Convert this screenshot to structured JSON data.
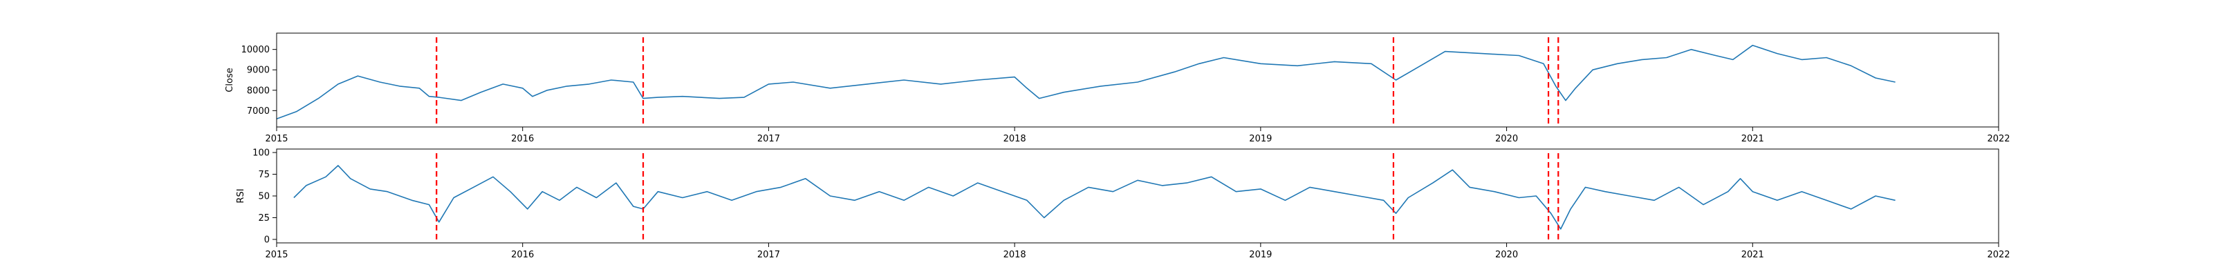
{
  "chart_data": [
    {
      "type": "line",
      "id": "close",
      "title": "",
      "xlabel": "",
      "ylabel": "Close",
      "xlim": [
        2015,
        2022
      ],
      "ylim": [
        6200,
        10800
      ],
      "xticks": [
        2015,
        2016,
        2017,
        2018,
        2019,
        2020,
        2021,
        2022
      ],
      "xtick_labels": [
        "2015",
        "2016",
        "2017",
        "2018",
        "2019",
        "2020",
        "2021",
        "2022"
      ],
      "yticks": [
        7000,
        8000,
        9000,
        10000
      ],
      "ytick_labels": [
        "7000",
        "8000",
        "9000",
        "10000"
      ],
      "grid": false,
      "series": [
        {
          "color": "#1f77b4",
          "x": [
            2015.0,
            2015.08,
            2015.17,
            2015.25,
            2015.33,
            2015.42,
            2015.5,
            2015.58,
            2015.62,
            2015.66,
            2015.75,
            2015.83,
            2015.92,
            2016.0,
            2016.04,
            2016.1,
            2016.18,
            2016.27,
            2016.36,
            2016.45,
            2016.49,
            2016.55,
            2016.65,
            2016.8,
            2016.9,
            2017.0,
            2017.1,
            2017.25,
            2017.4,
            2017.55,
            2017.7,
            2017.85,
            2018.0,
            2018.05,
            2018.1,
            2018.2,
            2018.35,
            2018.5,
            2018.65,
            2018.75,
            2018.85,
            2019.0,
            2019.15,
            2019.3,
            2019.45,
            2019.55,
            2019.65,
            2019.75,
            2019.9,
            2020.05,
            2020.15,
            2020.2,
            2020.24,
            2020.28,
            2020.35,
            2020.45,
            2020.55,
            2020.65,
            2020.75,
            2020.85,
            2020.92,
            2021.0,
            2021.1,
            2021.2,
            2021.3,
            2021.4,
            2021.5,
            2021.58
          ],
          "y": [
            6600,
            6950,
            7600,
            8300,
            8700,
            8400,
            8200,
            8100,
            7700,
            7650,
            7500,
            7900,
            8300,
            8100,
            7700,
            8000,
            8200,
            8300,
            8500,
            8400,
            7600,
            7650,
            7700,
            7600,
            7650,
            8300,
            8400,
            8100,
            8300,
            8500,
            8300,
            8500,
            8650,
            8100,
            7600,
            7900,
            8200,
            8400,
            8900,
            9300,
            9600,
            9300,
            9200,
            9400,
            9300,
            8500,
            9200,
            9900,
            9800,
            9700,
            9300,
            8200,
            7500,
            8100,
            9000,
            9300,
            9500,
            9600,
            10000,
            9700,
            9500,
            10200,
            9800,
            9500,
            9600,
            9200,
            8600,
            8400
          ]
        }
      ]
    },
    {
      "type": "line",
      "id": "rsi",
      "title": "",
      "xlabel": "",
      "ylabel": "RSI",
      "xlim": [
        2015,
        2022
      ],
      "ylim": [
        -4,
        104
      ],
      "xticks": [
        2015,
        2016,
        2017,
        2018,
        2019,
        2020,
        2021,
        2022
      ],
      "xtick_labels": [
        "2015",
        "2016",
        "2017",
        "2018",
        "2019",
        "2020",
        "2021",
        "2022"
      ],
      "yticks": [
        0,
        25,
        50,
        75,
        100
      ],
      "ytick_labels": [
        "0",
        "25",
        "50",
        "75",
        "100"
      ],
      "grid": false,
      "series": [
        {
          "color": "#1f77b4",
          "x": [
            2015.07,
            2015.12,
            2015.2,
            2015.25,
            2015.3,
            2015.38,
            2015.45,
            2015.55,
            2015.62,
            2015.66,
            2015.72,
            2015.8,
            2015.88,
            2015.95,
            2016.02,
            2016.08,
            2016.15,
            2016.22,
            2016.3,
            2016.38,
            2016.45,
            2016.49,
            2016.55,
            2016.65,
            2016.75,
            2016.85,
            2016.95,
            2017.05,
            2017.15,
            2017.25,
            2017.35,
            2017.45,
            2017.55,
            2017.65,
            2017.75,
            2017.85,
            2017.95,
            2018.05,
            2018.12,
            2018.2,
            2018.3,
            2018.4,
            2018.5,
            2018.6,
            2018.7,
            2018.8,
            2018.9,
            2019.0,
            2019.1,
            2019.2,
            2019.3,
            2019.4,
            2019.5,
            2019.55,
            2019.6,
            2019.7,
            2019.78,
            2019.85,
            2019.95,
            2020.05,
            2020.12,
            2020.18,
            2020.22,
            2020.26,
            2020.32,
            2020.4,
            2020.5,
            2020.6,
            2020.7,
            2020.8,
            2020.9,
            2020.95,
            2021.0,
            2021.1,
            2021.2,
            2021.3,
            2021.4,
            2021.5,
            2021.58
          ],
          "y": [
            48,
            62,
            72,
            85,
            70,
            58,
            55,
            45,
            40,
            20,
            48,
            60,
            72,
            55,
            35,
            55,
            45,
            60,
            48,
            65,
            38,
            35,
            55,
            48,
            55,
            45,
            55,
            60,
            70,
            50,
            45,
            55,
            45,
            60,
            50,
            65,
            55,
            45,
            25,
            45,
            60,
            55,
            68,
            62,
            65,
            72,
            55,
            58,
            45,
            60,
            55,
            50,
            45,
            30,
            48,
            65,
            80,
            60,
            55,
            48,
            50,
            30,
            12,
            35,
            60,
            55,
            50,
            45,
            60,
            40,
            55,
            70,
            55,
            45,
            55,
            45,
            35,
            50,
            45
          ]
        }
      ]
    }
  ],
  "shared": {
    "event_line_color": "#ff0000",
    "event_lines_x": [
      2015.65,
      2016.49,
      2019.54,
      2020.17,
      2020.21
    ]
  }
}
